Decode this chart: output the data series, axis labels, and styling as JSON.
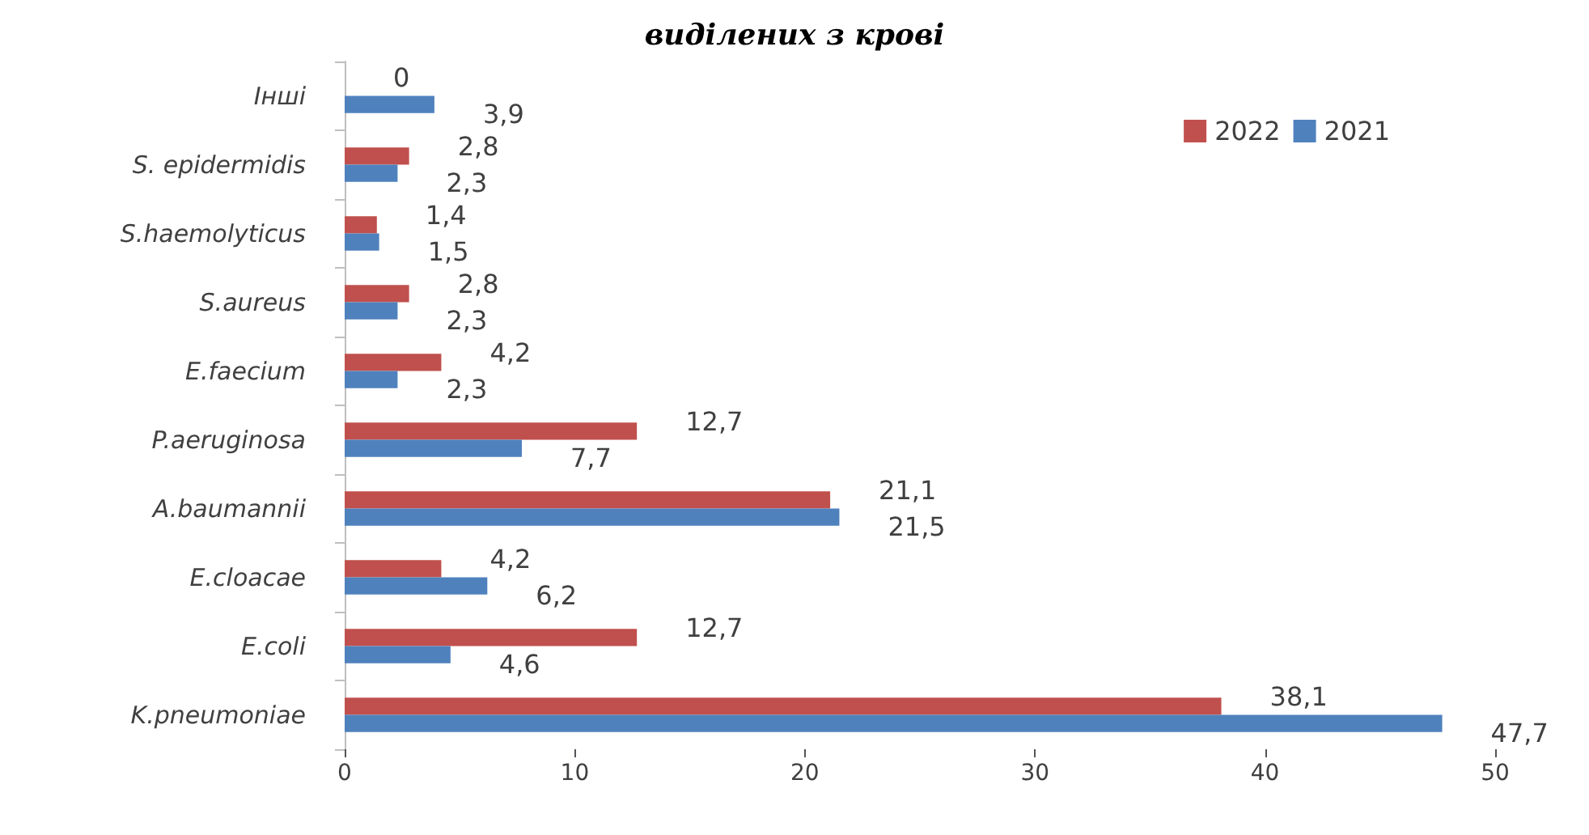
{
  "chart_data": {
    "type": "bar",
    "orientation": "horizontal",
    "title": "виділених з крові",
    "categories": [
      "Інші",
      "S. epidermidis",
      "S.haemolyticus",
      "S.aureus",
      "E.faecium",
      "P.aeruginosa",
      "A.baumannii",
      "E.cloacae",
      "E.coli",
      "K.pneumoniae"
    ],
    "series": [
      {
        "name": "2022",
        "color": "#c0504d",
        "values": [
          0,
          2.8,
          1.4,
          2.8,
          4.2,
          12.7,
          21.1,
          4.2,
          12.7,
          38.1
        ],
        "value_labels": [
          "0",
          "2,8",
          "1,4",
          "2,8",
          "4,2",
          "12,7",
          "21,1",
          "4,2",
          "12,7",
          "38,1"
        ]
      },
      {
        "name": "2021",
        "color": "#4f81bd",
        "values": [
          3.9,
          2.3,
          1.5,
          2.3,
          2.3,
          7.7,
          21.5,
          6.2,
          4.6,
          47.7
        ],
        "value_labels": [
          "3,9",
          "2,3",
          "1,5",
          "2,3",
          "2,3",
          "7,7",
          "21,5",
          "6,2",
          "4,6",
          "47,7"
        ]
      }
    ],
    "xlim": [
      0,
      50
    ],
    "xticks": [
      0,
      10,
      20,
      30,
      40,
      50
    ],
    "legend": "top right",
    "grid": false
  }
}
